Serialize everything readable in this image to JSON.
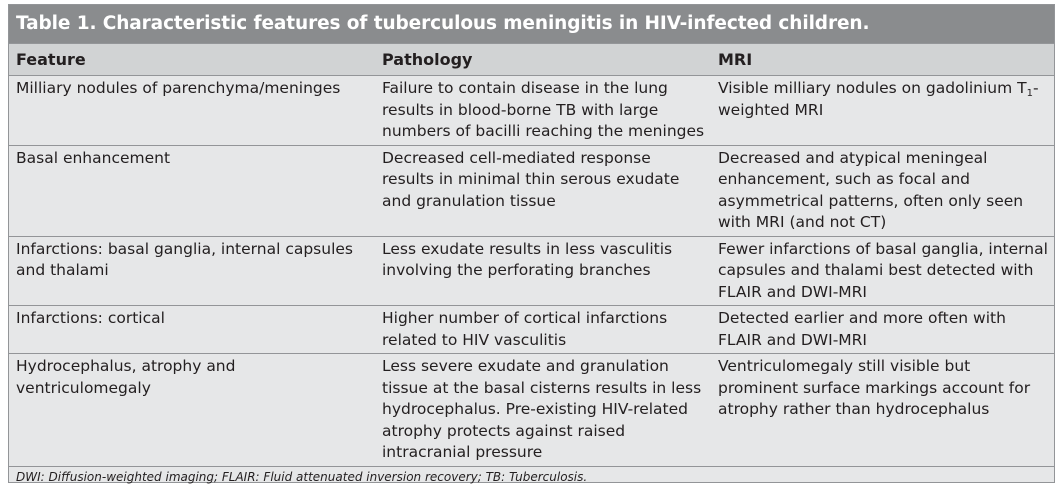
{
  "title": "Table 1. Characteristic features of tuberculous meningitis in HIV-infected children.",
  "headers": [
    "Feature",
    "Pathology",
    "MRI"
  ],
  "rows": [
    {
      "feature": "Milliary nodules of parenchyma/meninges",
      "pathology": "Failure to contain disease in the lung results in blood-borne TB with large numbers of bacilli reaching the meninges",
      "mri_pre": "Visible milliary nodules on gadolinium T",
      "mri_sub": "1",
      "mri_post": "-weighted MRI"
    },
    {
      "feature": "Basal enhancement",
      "pathology": "Decreased cell-mediated response results in minimal thin serous exudate and granulation tissue",
      "mri": "Decreased and atypical meningeal enhancement, such as focal and asymmetrical patterns, often only seen with MRI (and not CT)"
    },
    {
      "feature": "Infarctions: basal ganglia, internal capsules and thalami",
      "pathology": "Less exudate results in less vasculitis involving the perforating branches",
      "mri": "Fewer infarctions of basal ganglia, internal capsules and thalami best detected with FLAIR and DWI-MRI"
    },
    {
      "feature": "Infarctions: cortical",
      "pathology": "Higher number of cortical infarctions related to HIV vasculitis",
      "mri": "Detected earlier and more often with FLAIR and DWI-MRI"
    },
    {
      "feature": "Hydrocephalus, atrophy and ventriculomegaly",
      "pathology": "Less severe exudate and granulation tissue at the basal cisterns results in less hydrocephalus. Pre-existing HIV-related atrophy protects against raised intracranial pressure",
      "mri": "Ventriculomegaly still visible but prominent surface markings account for atrophy rather than hydrocephalus"
    }
  ],
  "footnote": "DWI: Diffusion-weighted imaging; FLAIR: Fluid attenuated inversion recovery; TB: Tuberculosis."
}
